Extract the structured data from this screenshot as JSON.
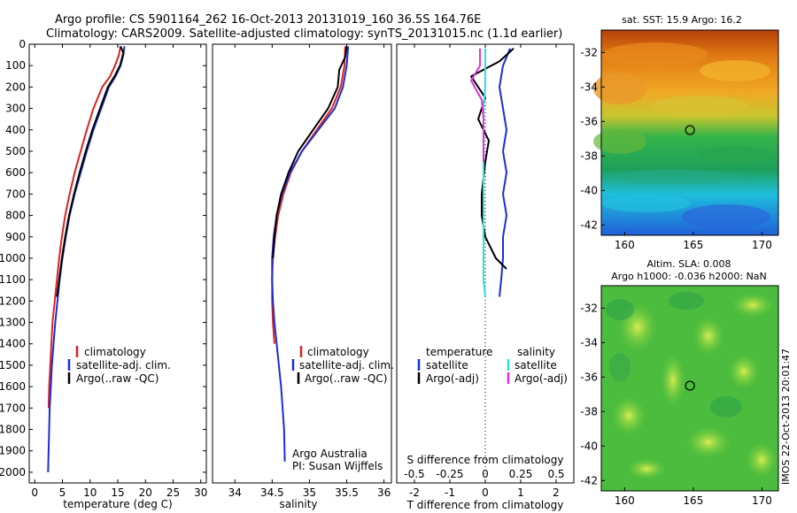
{
  "figure": {
    "title_line1": "Argo profile: CS 5901164_262 16-Oct-2013 20131019_160 36.5S 164.76E",
    "title_line2": "Climatology: CARS2009. Satellite-adjusted climatology: synTS_20131015.nc (1.1d earlier)",
    "credit_line1": "Argo Australia",
    "credit_line2": "PI: Susan Wijffels",
    "side_stamp": "IMOS 22-Oct-2013 20:01:47"
  },
  "colors": {
    "climatology": "#dd2222",
    "satellite": "#1a2fd6",
    "argo": "#000000",
    "sat_salinity": "#33dddd",
    "argo_salinity": "#dd33dd"
  },
  "chart_data": [
    {
      "type": "line",
      "name": "temperature-profile",
      "xlabel": "temperature (deg C)",
      "ylim": [
        2050,
        0
      ],
      "xlim": [
        -1,
        31
      ],
      "xticks": [
        0,
        5,
        10,
        15,
        20,
        25,
        30
      ],
      "yticks": [
        0,
        100,
        200,
        300,
        400,
        500,
        600,
        700,
        800,
        900,
        1000,
        1100,
        1200,
        1300,
        1400,
        1500,
        1600,
        1700,
        1800,
        1900,
        2000
      ],
      "legend": [
        "climatology",
        "satellite-adj. clim.",
        "Argo(..raw -QC)"
      ],
      "series": [
        {
          "name": "climatology",
          "color_key": "climatology",
          "x": [
            15.5,
            15.2,
            14.5,
            13.6,
            12.2,
            10.6,
            9.4,
            8.3,
            7.2,
            6.3,
            5.5,
            4.9,
            4.4,
            4.0,
            3.6,
            3.2,
            3.0,
            2.8,
            2.6,
            2.5
          ],
          "y": [
            10,
            50,
            100,
            150,
            200,
            300,
            400,
            500,
            600,
            700,
            800,
            900,
            1000,
            1100,
            1200,
            1300,
            1400,
            1500,
            1600,
            1700
          ]
        },
        {
          "name": "satellite-adj. clim.",
          "color_key": "satellite",
          "x": [
            16.2,
            16.0,
            15.5,
            14.6,
            13.4,
            12.0,
            10.6,
            9.4,
            8.3,
            7.2,
            6.3,
            5.6,
            5.0,
            4.5,
            4.1,
            3.7,
            3.4,
            3.1,
            2.9,
            2.7,
            2.6,
            2.5,
            2.4
          ],
          "y": [
            10,
            50,
            100,
            150,
            200,
            300,
            400,
            500,
            600,
            700,
            800,
            900,
            1000,
            1100,
            1200,
            1300,
            1400,
            1500,
            1600,
            1700,
            1800,
            1900,
            2000
          ]
        },
        {
          "name": "Argo(..raw -QC)",
          "color_key": "argo",
          "x": [
            15.5,
            16.0,
            15.4,
            14.4,
            13.2,
            11.8,
            10.4,
            9.2,
            8.1,
            7.1,
            6.2,
            5.5,
            4.9,
            4.4,
            4.0
          ],
          "y": [
            10,
            40,
            100,
            150,
            200,
            300,
            400,
            500,
            600,
            700,
            800,
            900,
            1000,
            1100,
            1180
          ]
        }
      ]
    },
    {
      "type": "line",
      "name": "salinity-profile",
      "xlabel": "salinity",
      "ylim": [
        2050,
        0
      ],
      "xlim": [
        33.7,
        36.1
      ],
      "xticks": [
        34,
        34.5,
        35,
        35.5,
        36
      ],
      "legend": [
        "climatology",
        "satellite-adj. clim.",
        "Argo(..raw -QC)"
      ],
      "series": [
        {
          "name": "climatology",
          "color_key": "climatology",
          "x": [
            35.48,
            35.47,
            35.42,
            35.3,
            35.1,
            34.9,
            34.75,
            34.65,
            34.58,
            34.54,
            34.51,
            34.5,
            34.5,
            34.51,
            34.53
          ],
          "y": [
            10,
            100,
            200,
            300,
            400,
            500,
            600,
            700,
            800,
            900,
            1000,
            1100,
            1200,
            1300,
            1400
          ]
        },
        {
          "name": "satellite-adj. clim.",
          "color_key": "satellite",
          "x": [
            35.52,
            35.5,
            35.45,
            35.34,
            35.12,
            34.9,
            34.74,
            34.63,
            34.56,
            34.52,
            34.5,
            34.5,
            34.51,
            34.53,
            34.56,
            34.59,
            34.62,
            34.64,
            34.66,
            34.67
          ],
          "y": [
            10,
            100,
            200,
            300,
            400,
            500,
            600,
            700,
            800,
            900,
            1000,
            1100,
            1200,
            1300,
            1400,
            1500,
            1600,
            1700,
            1800,
            1950
          ]
        },
        {
          "name": "Argo(..raw -QC)",
          "color_key": "argo",
          "x": [
            35.5,
            35.48,
            35.4,
            35.38,
            35.25,
            35.05,
            34.85,
            34.72,
            34.62,
            34.56,
            34.53,
            34.51
          ],
          "y": [
            10,
            60,
            120,
            200,
            300,
            400,
            500,
            600,
            700,
            800,
            900,
            1000
          ]
        }
      ]
    },
    {
      "type": "line",
      "name": "difference-profile",
      "xlabel": "T difference from climatology",
      "xlabel_top": "S difference from climatology",
      "xlim": [
        -2.5,
        2.5
      ],
      "xticks": [
        -2,
        -1,
        0,
        1,
        2
      ],
      "xticks_top": [
        -0.5,
        -0.25,
        0,
        0.25,
        0.5
      ],
      "legend_temperature_title": "temperature",
      "legend_salinity_title": "salinity",
      "legend_temperature": [
        "satellite",
        "Argo(-adj)"
      ],
      "legend_salinity": [
        "satellite",
        "Argo(-adj)"
      ],
      "series": [
        {
          "name": "temperature satellite",
          "color_key": "satellite",
          "x": [
            0.7,
            0.5,
            0.4,
            0.5,
            0.6,
            0.5,
            0.6,
            0.5,
            0.6,
            0.5,
            0.5,
            0.45,
            0.4
          ],
          "y": [
            20,
            100,
            200,
            300,
            400,
            500,
            600,
            700,
            800,
            900,
            1000,
            1100,
            1180
          ]
        },
        {
          "name": "temperature Argo(-adj)",
          "color_key": "argo",
          "x": [
            0.8,
            0.4,
            -0.4,
            0.0,
            -0.2,
            0.1,
            0.0,
            -0.1,
            -0.1,
            0.0,
            0.3,
            0.6
          ],
          "y": [
            20,
            80,
            150,
            250,
            350,
            450,
            550,
            700,
            800,
            900,
            1000,
            1050
          ]
        },
        {
          "name": "salinity satellite",
          "color_key": "sat_salinity",
          "x": [
            0.0,
            0.0,
            0.0,
            -0.05,
            -0.05,
            -0.05,
            -0.05,
            -0.05,
            -0.05,
            -0.05,
            -0.05,
            -0.05,
            0.0
          ],
          "y": [
            20,
            100,
            200,
            300,
            400,
            500,
            600,
            700,
            800,
            900,
            1000,
            1100,
            1180
          ]
        },
        {
          "name": "salinity Argo(-adj)",
          "color_key": "argo_salinity",
          "x": [
            -0.15,
            -0.15,
            -0.4,
            -0.1,
            -0.05,
            -0.05,
            -0.05
          ],
          "y": [
            20,
            100,
            170,
            260,
            350,
            450,
            550
          ]
        }
      ]
    }
  ],
  "maps": [
    {
      "name": "sst-map",
      "title": "sat. SST: 15.9  Argo: 16.2",
      "xticks": [
        160,
        165,
        170
      ],
      "yticks": [
        -32,
        -34,
        -36,
        -38,
        -40,
        -42
      ],
      "xlim": [
        158.3,
        171.2
      ],
      "ylim": [
        -42.6,
        -30.7
      ],
      "marker": [
        164.76,
        -36.5
      ]
    },
    {
      "name": "sla-map",
      "title_line1": "Altim. SLA: 0.008",
      "title_line2": "Argo h1000: -0.036  h2000: NaN",
      "xticks": [
        160,
        165,
        170
      ],
      "yticks": [
        -32,
        -34,
        -36,
        -38,
        -40,
        -42
      ],
      "xlim": [
        158.3,
        171.2
      ],
      "ylim": [
        -42.6,
        -30.7
      ],
      "marker": [
        164.76,
        -36.5
      ]
    }
  ]
}
